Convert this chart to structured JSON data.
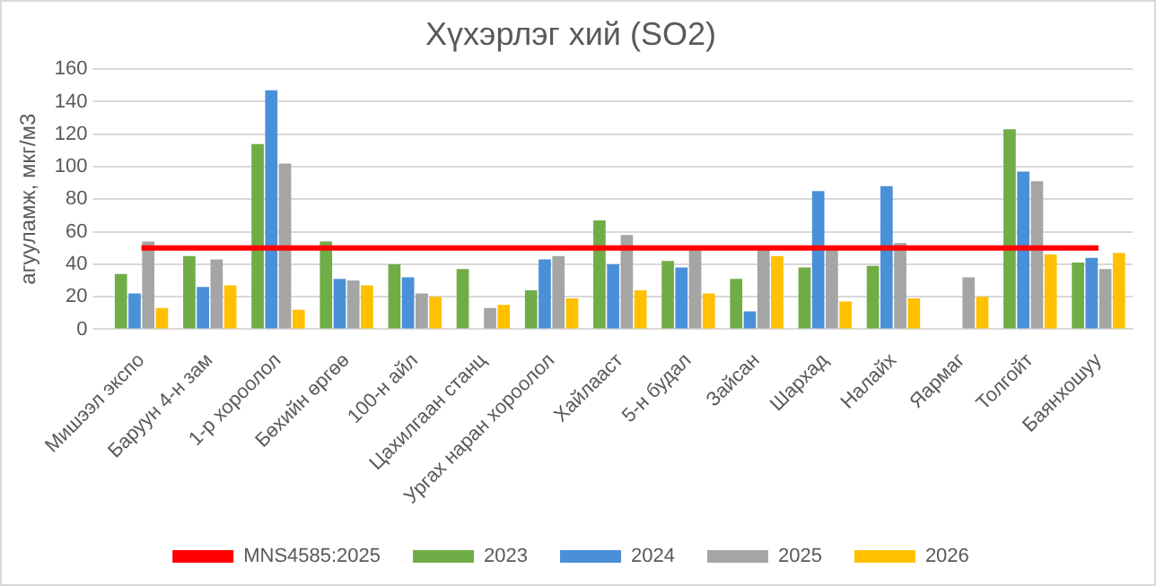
{
  "chart_data": {
    "type": "bar",
    "title": "Хүхэрлэг хий (SO2)",
    "ylabel": "агууламж, мкг/м3",
    "categories": [
      "Мишээл экспо",
      "Баруун 4-н зам",
      "1-р хороолол",
      "Бөхийн өргөө",
      "100-н айл",
      "Цахилгаан станц",
      "Ургах наран хороолол",
      "Хайлааст",
      "5-н будал",
      "Зайсан",
      "Шархад",
      "Налайх",
      "Яармаг",
      "Толгойт",
      "Баянхошуу"
    ],
    "series": [
      {
        "name": "2023",
        "color": "#70ad47",
        "values": [
          34,
          45,
          114,
          54,
          40,
          37,
          24,
          67,
          42,
          31,
          38,
          39,
          null,
          123,
          41
        ]
      },
      {
        "name": "2024",
        "color": "#4a90d9",
        "values": [
          22,
          26,
          147,
          31,
          32,
          null,
          43,
          40,
          38,
          11,
          85,
          88,
          null,
          97,
          44
        ]
      },
      {
        "name": "2025",
        "color": "#a5a5a5",
        "values": [
          54,
          43,
          102,
          30,
          22,
          13,
          45,
          58,
          50,
          50,
          50,
          53,
          32,
          91,
          37
        ]
      },
      {
        "name": "2026",
        "color": "#ffc000",
        "values": [
          13,
          27,
          12,
          27,
          20,
          15,
          19,
          24,
          22,
          45,
          17,
          19,
          20,
          46,
          47
        ]
      },
      {
        "name": "MNS4585:2025",
        "type": "line",
        "color": "#ff0000",
        "marker": "none",
        "values": [
          50,
          50,
          50,
          50,
          50,
          50,
          50,
          50,
          50,
          50,
          50,
          50,
          50,
          50,
          50
        ]
      }
    ],
    "ylim": [
      0,
      160
    ],
    "yticks": [
      0,
      20,
      40,
      60,
      80,
      100,
      120,
      140,
      160
    ],
    "grid": "y",
    "legend": "bottom"
  }
}
